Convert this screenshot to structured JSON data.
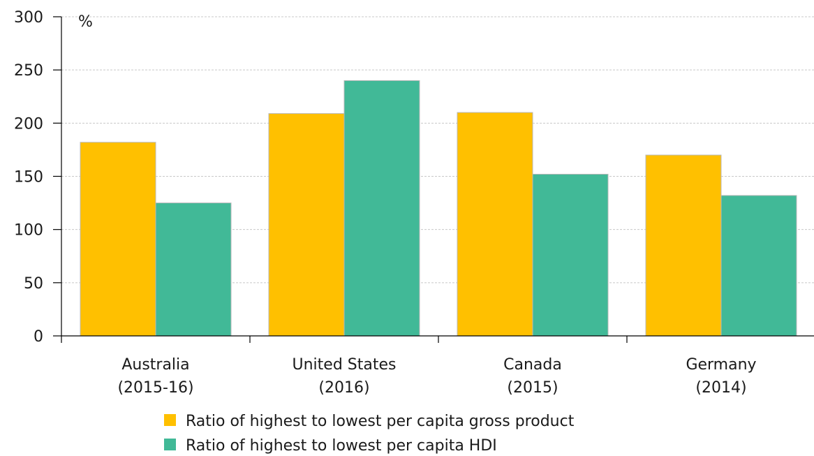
{
  "chart_data": {
    "type": "bar",
    "title": "",
    "xlabel": "",
    "ylabel": "%",
    "ylim": [
      0,
      300
    ],
    "yticks": [
      0,
      50,
      100,
      150,
      200,
      250,
      300
    ],
    "grid": true,
    "legend_position": "bottom",
    "categories": [
      [
        "Australia",
        "(2015-16)"
      ],
      [
        "United States",
        "(2016)"
      ],
      [
        "Canada",
        "(2015)"
      ],
      [
        "Germany",
        "(2014)"
      ]
    ],
    "series": [
      {
        "name": "Ratio of highest to lowest per capita gross product",
        "color": "#FFC000",
        "values": [
          182,
          209,
          210,
          170
        ]
      },
      {
        "name": "Ratio of highest to lowest per capita HDI",
        "color": "#41B997",
        "values": [
          125,
          240,
          152,
          132
        ]
      }
    ]
  }
}
